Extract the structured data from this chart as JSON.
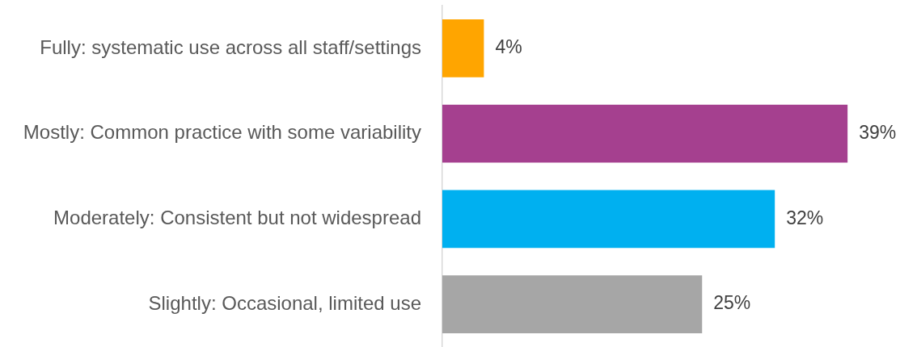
{
  "chart_data": {
    "type": "bar",
    "orientation": "horizontal",
    "categories": [
      "Fully: systematic use across all staff/settings",
      "Mostly: Common practice with some variability",
      "Moderately: Consistent but not widespread",
      "Slightly: Occasional, limited use"
    ],
    "values": [
      4,
      39,
      32,
      25
    ],
    "colors": [
      "#ffa500",
      "#a5408f",
      "#00b0f0",
      "#a6a6a6"
    ],
    "value_labels": [
      "4%",
      "39%",
      "32%",
      "25%"
    ]
  }
}
